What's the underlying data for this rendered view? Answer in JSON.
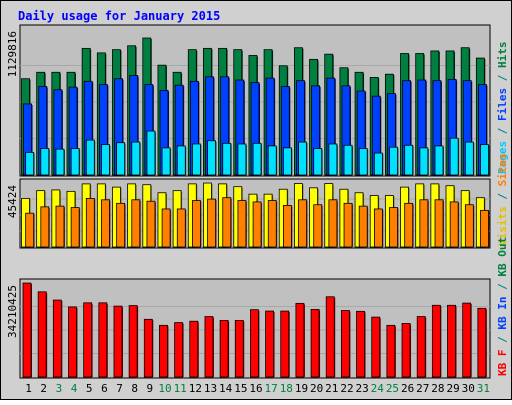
{
  "chart_data": {
    "type": "bar",
    "title": "Daily usage for January 2015",
    "categories": [
      "1",
      "2",
      "3",
      "4",
      "5",
      "6",
      "7",
      "8",
      "9",
      "10",
      "11",
      "12",
      "13",
      "14",
      "15",
      "16",
      "17",
      "18",
      "19",
      "20",
      "21",
      "22",
      "23",
      "24",
      "25",
      "26",
      "27",
      "28",
      "29",
      "30",
      "31"
    ],
    "weekend_days": [
      "3",
      "4",
      "10",
      "11",
      "17",
      "18",
      "24",
      "25",
      "31"
    ],
    "panels": [
      {
        "id": "requests",
        "max_label": "1129816",
        "ylim": [
          0,
          1129816
        ],
        "legend": [
          {
            "text": "Pages",
            "color": "#00c8ff"
          },
          {
            "text": " / ",
            "color": "#008080"
          },
          {
            "text": "Files",
            "color": "#0040ff"
          },
          {
            "text": " / ",
            "color": "#008080"
          },
          {
            "text": "Hits",
            "color": "#008040"
          }
        ],
        "series": [
          {
            "name": "Hits",
            "color": "#008040",
            "values": [
              745000,
              795000,
              795000,
              795000,
              980000,
              945000,
              970000,
              1000000,
              1060000,
              850000,
              795000,
              970000,
              980000,
              980000,
              970000,
              925000,
              970000,
              845000,
              985000,
              895000,
              935000,
              830000,
              795000,
              755000,
              780000,
              940000,
              940000,
              960000,
              960000,
              985000,
              905000
            ]
          },
          {
            "name": "Files",
            "color": "#0040ff",
            "values": [
              550000,
              685000,
              660000,
              680000,
              725000,
              700000,
              745000,
              770000,
              700000,
              655000,
              695000,
              725000,
              760000,
              760000,
              735000,
              715000,
              750000,
              685000,
              730000,
              690000,
              750000,
              690000,
              650000,
              610000,
              630000,
              730000,
              735000,
              730000,
              740000,
              730000,
              700000
            ]
          },
          {
            "name": "Pages",
            "color": "#00e0ff",
            "values": [
              175000,
              205000,
              200000,
              205000,
              270000,
              235000,
              250000,
              255000,
              340000,
              210000,
              225000,
              240000,
              265000,
              245000,
              240000,
              245000,
              225000,
              210000,
              255000,
              205000,
              240000,
              230000,
              205000,
              170000,
              215000,
              230000,
              210000,
              225000,
              285000,
              255000,
              235000
            ]
          }
        ]
      },
      {
        "id": "visits",
        "max_label": "45424",
        "ylim": [
          0,
          45424
        ],
        "legend": [
          {
            "text": "Visits",
            "color": "#e0c000"
          },
          {
            "text": " / ",
            "color": "#008080"
          },
          {
            "text": "Sites",
            "color": "#ff8000"
          }
        ],
        "series": [
          {
            "name": "Visits",
            "color": "#ffff00",
            "values": [
              34500,
              40000,
              40500,
              39500,
              44800,
              44800,
              42500,
              44800,
              44200,
              38500,
              40000,
              44800,
              45400,
              44800,
              42800,
              37500,
              37500,
              41000,
              45000,
              42000,
              45000,
              41000,
              38500,
              36500,
              36500,
              42500,
              44800,
              44800,
              43500,
              40000,
              35000
            ]
          },
          {
            "name": "Sites",
            "color": "#ff8000",
            "values": [
              24000,
              28500,
              29000,
              28000,
              34500,
              33500,
              31000,
              33500,
              32500,
              27000,
              27000,
              33000,
              34000,
              35000,
              33000,
              32000,
              33000,
              29500,
              33500,
              30000,
              33500,
              31000,
              29000,
              27000,
              28000,
              31000,
              33500,
              33500,
              32000,
              30000,
              26000
            ]
          }
        ]
      },
      {
        "id": "kbytes",
        "max_label": "34210425",
        "ylim": [
          0,
          34210425
        ],
        "legend": [
          {
            "text": "KB F",
            "color": "#ff0000"
          },
          {
            "text": " / ",
            "color": "#008080"
          },
          {
            "text": "KB In",
            "color": "#0040ff"
          },
          {
            "text": " / ",
            "color": "#008080"
          },
          {
            "text": "KB Out",
            "color": "#008040"
          }
        ],
        "series": [
          {
            "name": "KB F",
            "color": "#ff0000",
            "values": [
              34200000,
              31000000,
              28000000,
              25500000,
              27000000,
              27000000,
              25800000,
              26000000,
              21000000,
              18800000,
              19800000,
              20300000,
              22000000,
              20600000,
              20600000,
              24500000,
              24000000,
              24000000,
              26800000,
              24600000,
              29200000,
              24200000,
              23900000,
              21800000,
              18800000,
              19500000,
              22000000,
              26100000,
              26100000,
              26900000,
              25000000
            ]
          }
        ]
      }
    ]
  }
}
